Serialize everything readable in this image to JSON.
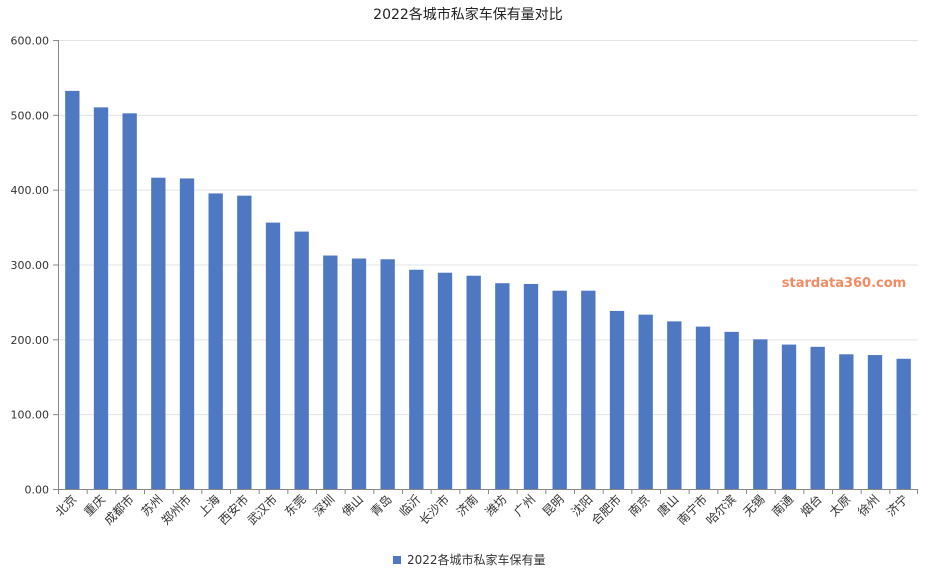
{
  "chart_data": {
    "type": "bar",
    "title": "2022各城市私家车保有量对比",
    "categories": [
      "北京",
      "重庆",
      "成都市",
      "苏州",
      "郑州市",
      "上海",
      "西安市",
      "武汉市",
      "东莞",
      "深圳",
      "佛山",
      "青岛",
      "临沂",
      "长沙市",
      "济南",
      "潍坊",
      "广州",
      "昆明",
      "沈阳",
      "合肥市",
      "南京",
      "唐山",
      "南宁市",
      "哈尔滨",
      "无锡",
      "南通",
      "烟台",
      "太原",
      "徐州",
      "济宁"
    ],
    "series": [
      {
        "name": "2022各城市私家车保有量",
        "color": "#4f78c2",
        "values": [
          532,
          510,
          502,
          416,
          415,
          395,
          392,
          356,
          344,
          312,
          308,
          307,
          293,
          289,
          285,
          275,
          274,
          265,
          265,
          238,
          233,
          224,
          217,
          210,
          200,
          193,
          190,
          180,
          179,
          174
        ]
      }
    ],
    "yticks": [
      "0.00",
      "100.00",
      "200.00",
      "300.00",
      "400.00",
      "500.00",
      "600.00"
    ],
    "ylim": [
      0,
      600
    ],
    "grid": true,
    "legend_position": "bottom-center"
  },
  "watermark": "stardata360.com",
  "colors": {
    "grid": "#e3e3e3",
    "axis": "#888888"
  }
}
